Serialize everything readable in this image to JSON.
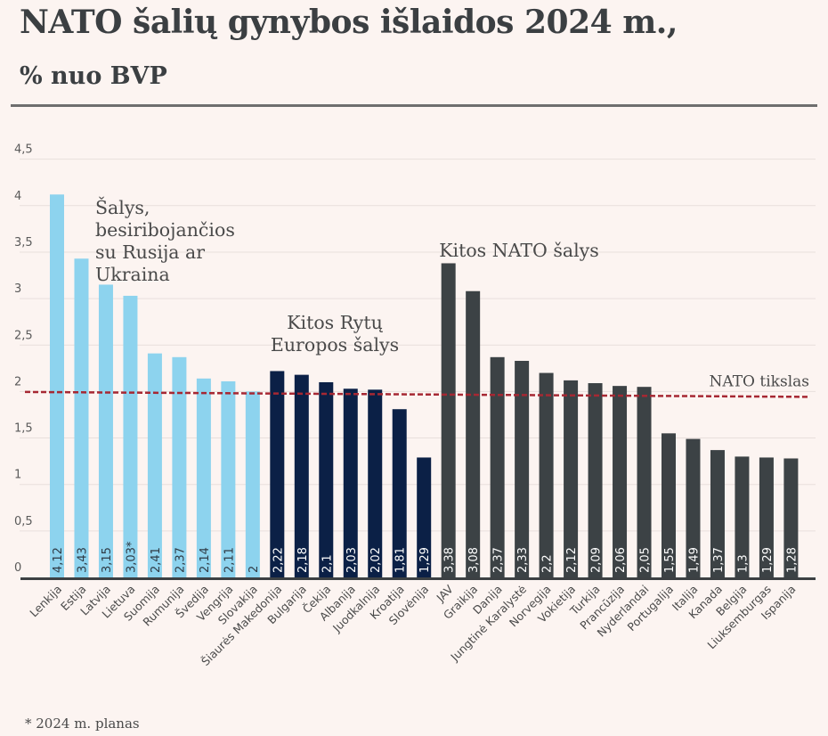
{
  "header": {
    "title": "NATO šalių gynybos išlaidos 2024 m.,",
    "subtitle": "% nuo BVP"
  },
  "footnote": "* 2024 m. planas",
  "colors": {
    "group_border": "#8dd3ee",
    "group_east": "#0b2046",
    "group_other": "#3c4245",
    "target_line": "#a62833",
    "gridline": "#e8dfdc",
    "baseline": "#3c4043"
  },
  "chart_data": {
    "type": "bar",
    "title": "NATO šalių gynybos išlaidos 2024 m.,",
    "subtitle": "% nuo BVP",
    "xlabel": "",
    "ylabel": "% nuo BVP",
    "ylim": [
      0,
      4.5
    ],
    "yticks": [
      0,
      0.5,
      1,
      1.5,
      2,
      2.5,
      3,
      3.5,
      4,
      4.5
    ],
    "ytick_labels": [
      "0",
      "0,5",
      "1",
      "1,5",
      "2",
      "2,5",
      "3",
      "3,5",
      "4",
      "4,5"
    ],
    "grid": true,
    "categories": [
      "Lenkija",
      "Estija",
      "Latvija",
      "Lietuva",
      "Suomija",
      "Rumunija",
      "Švedija",
      "Vengrija",
      "Slovakija",
      "Šiaurės Makedonija",
      "Bulgarija",
      "Čekija",
      "Albanija",
      "Juodkalnija",
      "Kroatija",
      "Slovėnija",
      "JAV",
      "Graikija",
      "Danija",
      "Jungtinė Karalystė",
      "Norvegija",
      "Vokietija",
      "Turkija",
      "Prancūzija",
      "Nyderlandai",
      "Portugalija",
      "Italija",
      "Kanada",
      "Belgija",
      "Liuksemburgas",
      "Ispanija"
    ],
    "values": [
      4.12,
      3.43,
      3.15,
      3.03,
      2.41,
      2.37,
      2.14,
      2.11,
      2.0,
      2.22,
      2.18,
      2.1,
      2.03,
      2.02,
      1.81,
      1.29,
      3.38,
      3.08,
      2.37,
      2.33,
      2.2,
      2.12,
      2.09,
      2.06,
      2.05,
      1.55,
      1.49,
      1.37,
      1.3,
      1.29,
      1.28
    ],
    "data_labels": [
      "4,12",
      "3,43",
      "3,15",
      "3,03*",
      "2,41",
      "2,37",
      "2,14",
      "2,11",
      "2",
      "2,22",
      "2,18",
      "2,1",
      "2,03",
      "2,02",
      "1,81",
      "1,29",
      "3,38",
      "3,08",
      "2,37",
      "2,33",
      "2,2",
      "2,12",
      "2,09",
      "2,06",
      "2,05",
      "1,55",
      "1,49",
      "1,37",
      "1,3",
      "1,29",
      "1,28"
    ],
    "groups": [
      {
        "name": "Šalys, besiribojančios su Rusija ar Ukraina",
        "label_lines": [
          "Šalys,",
          "besiribojančios",
          "su Rusija ar",
          "Ukraina"
        ],
        "start": 0,
        "end": 8,
        "color_key": "group_border"
      },
      {
        "name": "Kitos Rytų Europos šalys",
        "label_lines": [
          "Kitos Rytų",
          "Europos šalys"
        ],
        "start": 9,
        "end": 15,
        "color_key": "group_east"
      },
      {
        "name": "Kitos NATO šalys",
        "label_lines": [
          "Kitos NATO šalys"
        ],
        "start": 16,
        "end": 30,
        "color_key": "group_other"
      }
    ],
    "reference_line": {
      "label": "NATO tikslas",
      "value": 2,
      "style": "dashed"
    },
    "legend": "none"
  }
}
